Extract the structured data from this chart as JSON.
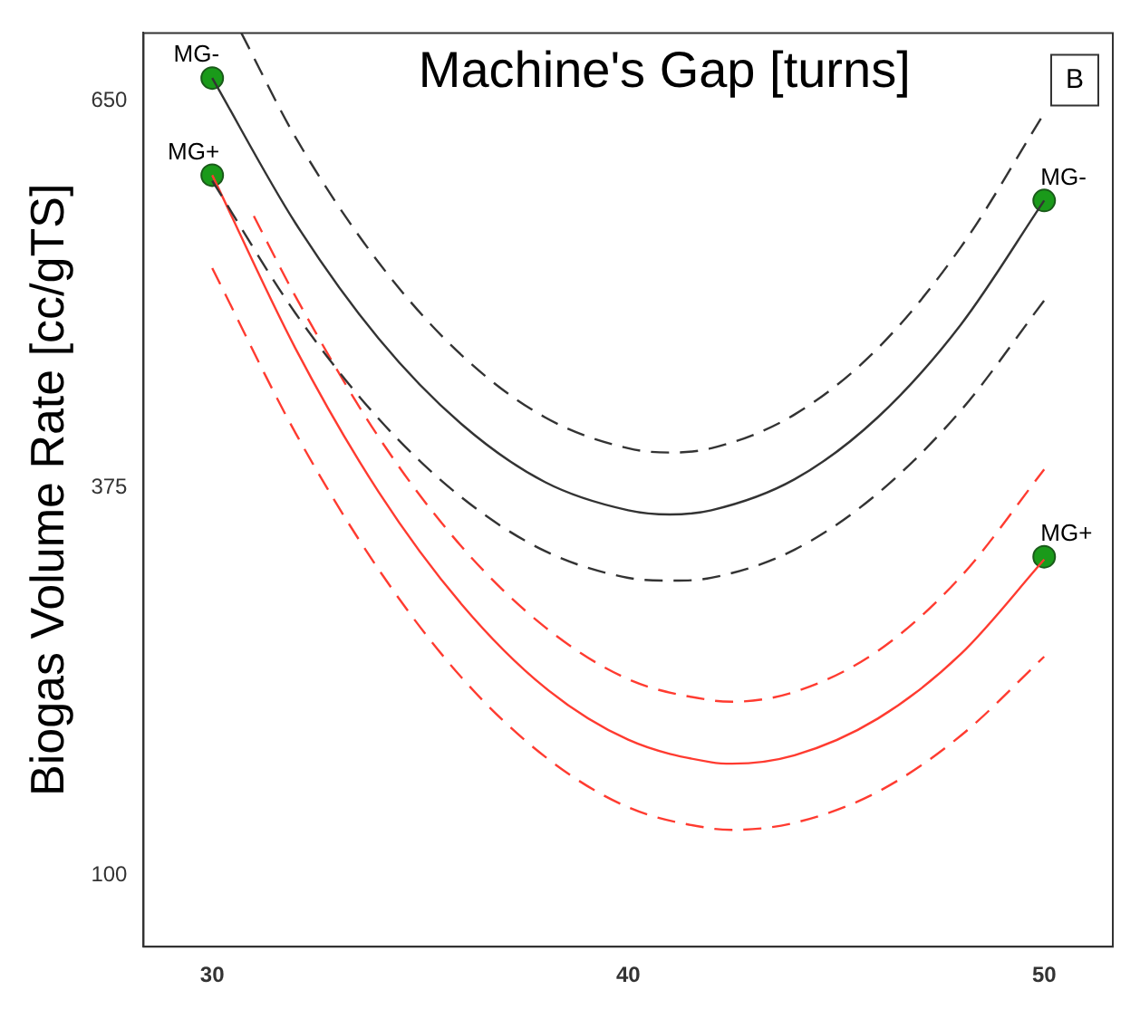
{
  "chart_data": {
    "type": "line",
    "title": "Machine's Gap [turns]",
    "ylabel": "Biogas Volume Rate [cc/gTS]",
    "xlim": [
      28.35,
      51.65
    ],
    "xticks": [
      30,
      40,
      50
    ],
    "ylim": [
      49,
      698
    ],
    "yticks": [
      100,
      375,
      650
    ],
    "series": [
      {
        "color": "#333333",
        "line_style": "dashed",
        "marker": "none",
        "x": [
          30.7,
          32,
          34,
          36,
          38,
          40,
          41,
          42,
          44,
          46,
          48,
          50
        ],
        "values": [
          698,
          624,
          535,
          469,
          425,
          403,
          400,
          403,
          427,
          474,
          546,
          641
        ]
      },
      {
        "color": "#333333",
        "line_style": "solid",
        "marker": "none",
        "x": [
          30,
          32,
          34,
          36,
          38,
          40,
          41,
          42,
          44,
          46,
          48,
          50
        ],
        "values": [
          666,
          563,
          481,
          420,
          379,
          359,
          356,
          359,
          381,
          425,
          491,
          579
        ]
      },
      {
        "color": "#333333",
        "line_style": "dashed",
        "marker": "none",
        "x": [
          30,
          32,
          34,
          36,
          38,
          40,
          41,
          42,
          44,
          46,
          48,
          50
        ],
        "values": [
          593,
          499,
          424,
          368,
          330,
          311,
          309,
          311,
          331,
          371,
          430,
          508
        ]
      },
      {
        "color": "#ff3b30",
        "line_style": "dashed",
        "marker": "none",
        "x": [
          31,
          32,
          34,
          36,
          38,
          40,
          42,
          42.5,
          44,
          46,
          48,
          50
        ],
        "values": [
          568,
          511,
          411,
          333,
          276,
          239,
          224,
          223,
          230,
          259,
          312,
          388
        ]
      },
      {
        "color": "#ff3b30",
        "line_style": "solid",
        "marker": "none",
        "x": [
          30,
          32,
          34,
          36,
          38,
          40,
          42,
          42.5,
          44,
          46,
          48,
          50
        ],
        "values": [
          597,
          474,
          372,
          292,
          233,
          196,
          180,
          179,
          185,
          211,
          257,
          324
        ]
      },
      {
        "color": "#ff3b30",
        "line_style": "dashed",
        "marker": "none",
        "x": [
          30,
          32,
          34,
          36,
          38,
          40,
          42,
          42.5,
          44,
          46,
          48,
          50
        ],
        "values": [
          531,
          414,
          317,
          240,
          184,
          148,
          133,
          132,
          137,
          159,
          199,
          255
        ]
      },
      {
        "type": "scatter",
        "name": "MG-",
        "color": "#1a9a1a",
        "marker": "circle",
        "x": [
          30,
          50
        ],
        "values": [
          666,
          579
        ]
      },
      {
        "type": "scatter",
        "name": "MG+",
        "color": "#1a9a1a",
        "marker": "circle",
        "x": [
          30,
          50
        ],
        "values": [
          597,
          326
        ]
      }
    ],
    "annotations": [
      "B"
    ]
  }
}
